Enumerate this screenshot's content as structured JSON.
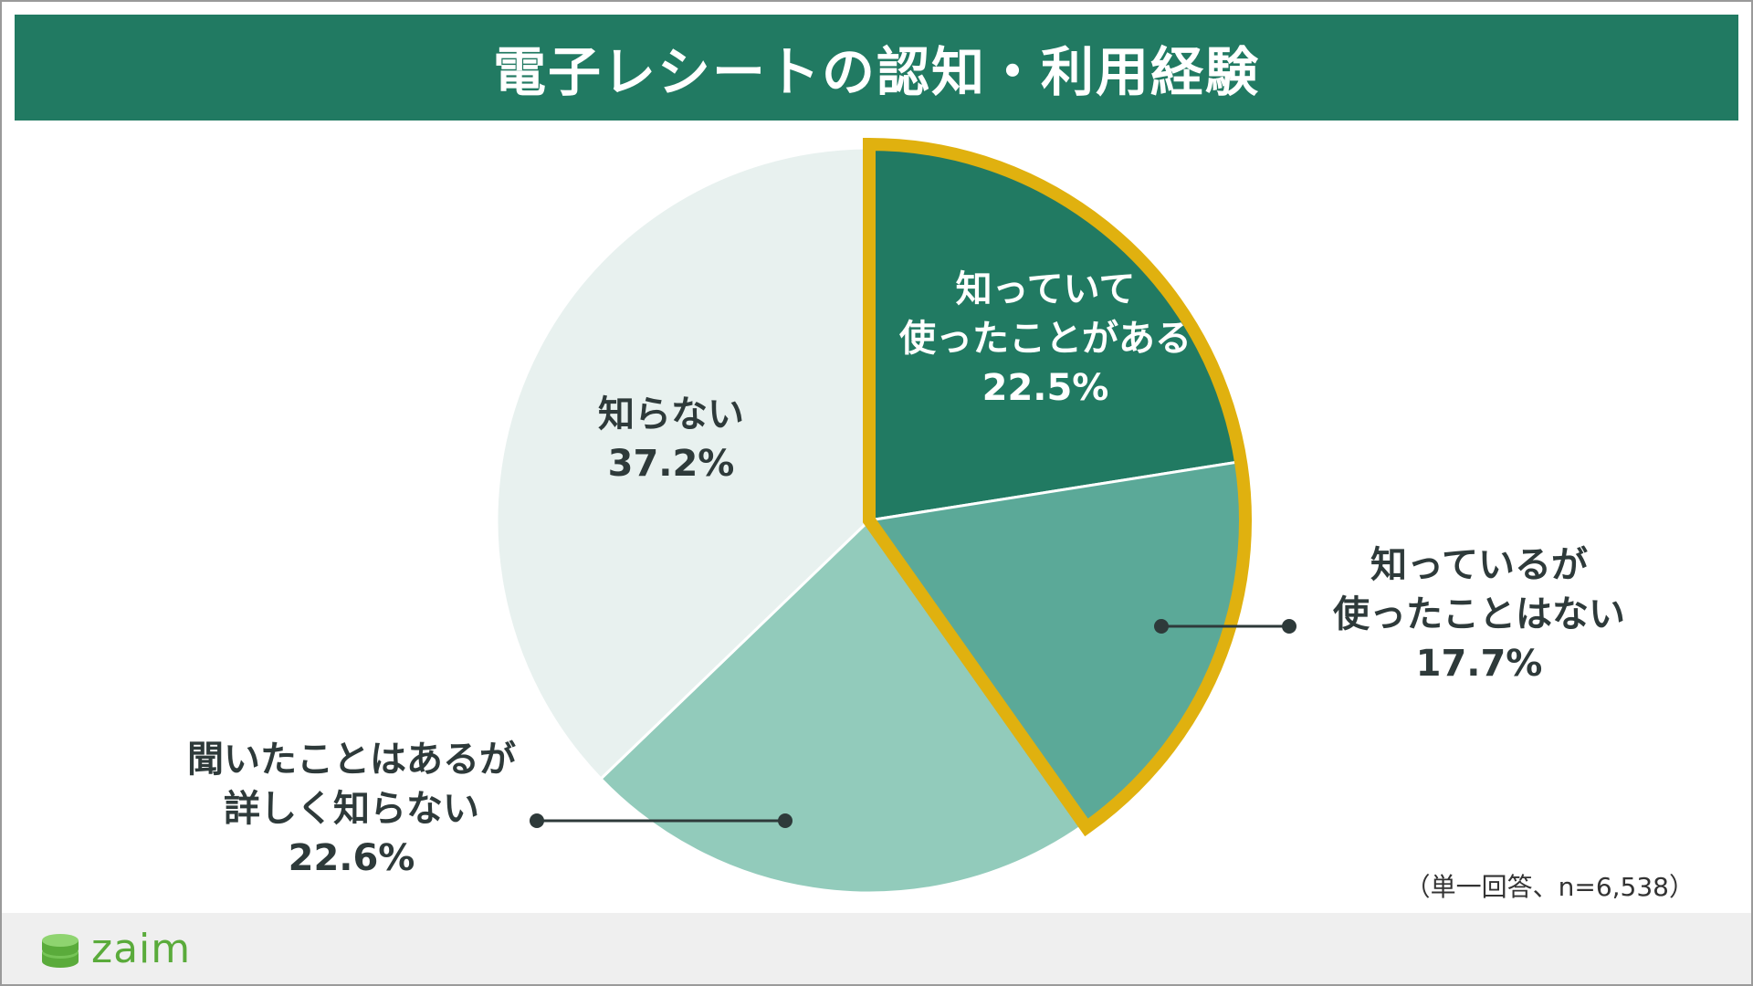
{
  "title": "電子レシートの認知・利用経験",
  "note": "（単一回答、n=6,538）",
  "logo": {
    "text": "zaim",
    "icon": "coin-stack-icon"
  },
  "colors": {
    "title_bg": "#217a62",
    "highlight_border": "#e0b10f",
    "label_dark": "#2e3a3a",
    "label_light": "#ffffff"
  },
  "chart_data": {
    "type": "pie",
    "title": "電子レシートの認知・利用経験",
    "start": "12 o'clock",
    "direction": "clockwise",
    "slices": [
      {
        "lines": [
          "知っていて",
          "使ったことがある"
        ],
        "pct_label": "22.5%",
        "value": 22.5,
        "color": "#217a62",
        "label_color": "#ffffff",
        "highlight": true
      },
      {
        "lines": [
          "知っているが",
          "使ったことはない"
        ],
        "pct_label": "17.7%",
        "value": 17.7,
        "color": "#5ba998",
        "label_color": "#2e3a3a",
        "highlight": true
      },
      {
        "lines": [
          "聞いたことはあるが",
          "詳しく知らない"
        ],
        "pct_label": "22.6%",
        "value": 22.6,
        "color": "#92cbbb",
        "label_color": "#2e3a3a",
        "highlight": false
      },
      {
        "lines": [
          "知らない"
        ],
        "pct_label": "37.2%",
        "value": 37.2,
        "color": "#e8f1ef",
        "label_color": "#2e3a3a",
        "highlight": false
      }
    ]
  }
}
